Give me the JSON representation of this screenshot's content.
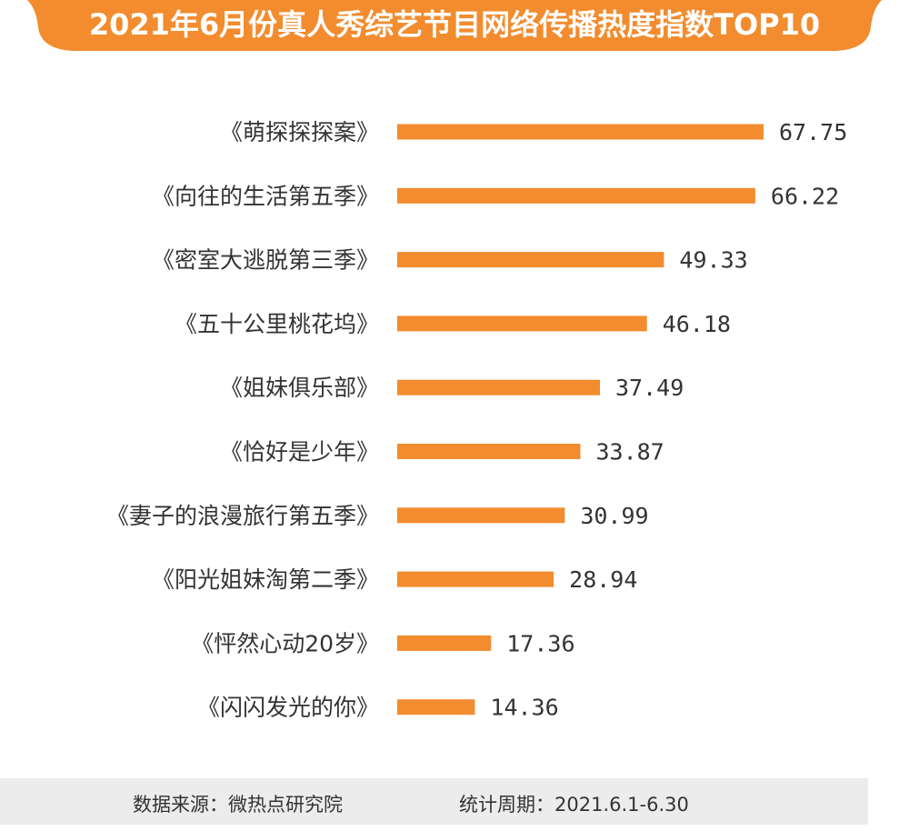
{
  "chart_data": {
    "type": "bar",
    "orientation": "horizontal",
    "title": "2021年6月份真人秀综艺节目网络传播热度指数TOP10",
    "categories": [
      "《萌探探探案》",
      "《向往的生活第五季》",
      "《密室大逃脱第三季》",
      "《五十公里桃花坞》",
      "《姐妹俱乐部》",
      "《恰好是少年》",
      "《妻子的浪漫旅行第五季》",
      "《阳光姐妹淘第二季》",
      "《怦然心动20岁》",
      "《闪闪发光的你》"
    ],
    "values": [
      67.75,
      66.22,
      49.33,
      46.18,
      37.49,
      33.87,
      30.99,
      28.94,
      17.36,
      14.36
    ],
    "value_labels": [
      "67.75",
      "66.22",
      "49.33",
      "46.18",
      "37.49",
      "33.87",
      "30.99",
      "28.94",
      "17.36",
      "14.36"
    ],
    "xlim": [
      0,
      67.75
    ],
    "grid": false,
    "bar_color": "#f28c2e"
  },
  "footer": {
    "source": "数据来源：微热点研究院",
    "period": "统计周期：2021.6.1-6.30"
  },
  "colors": {
    "banner": "#f28c2e",
    "bar": "#f28c2e",
    "label_text": "#333333",
    "footer_bg": "#ececec"
  }
}
